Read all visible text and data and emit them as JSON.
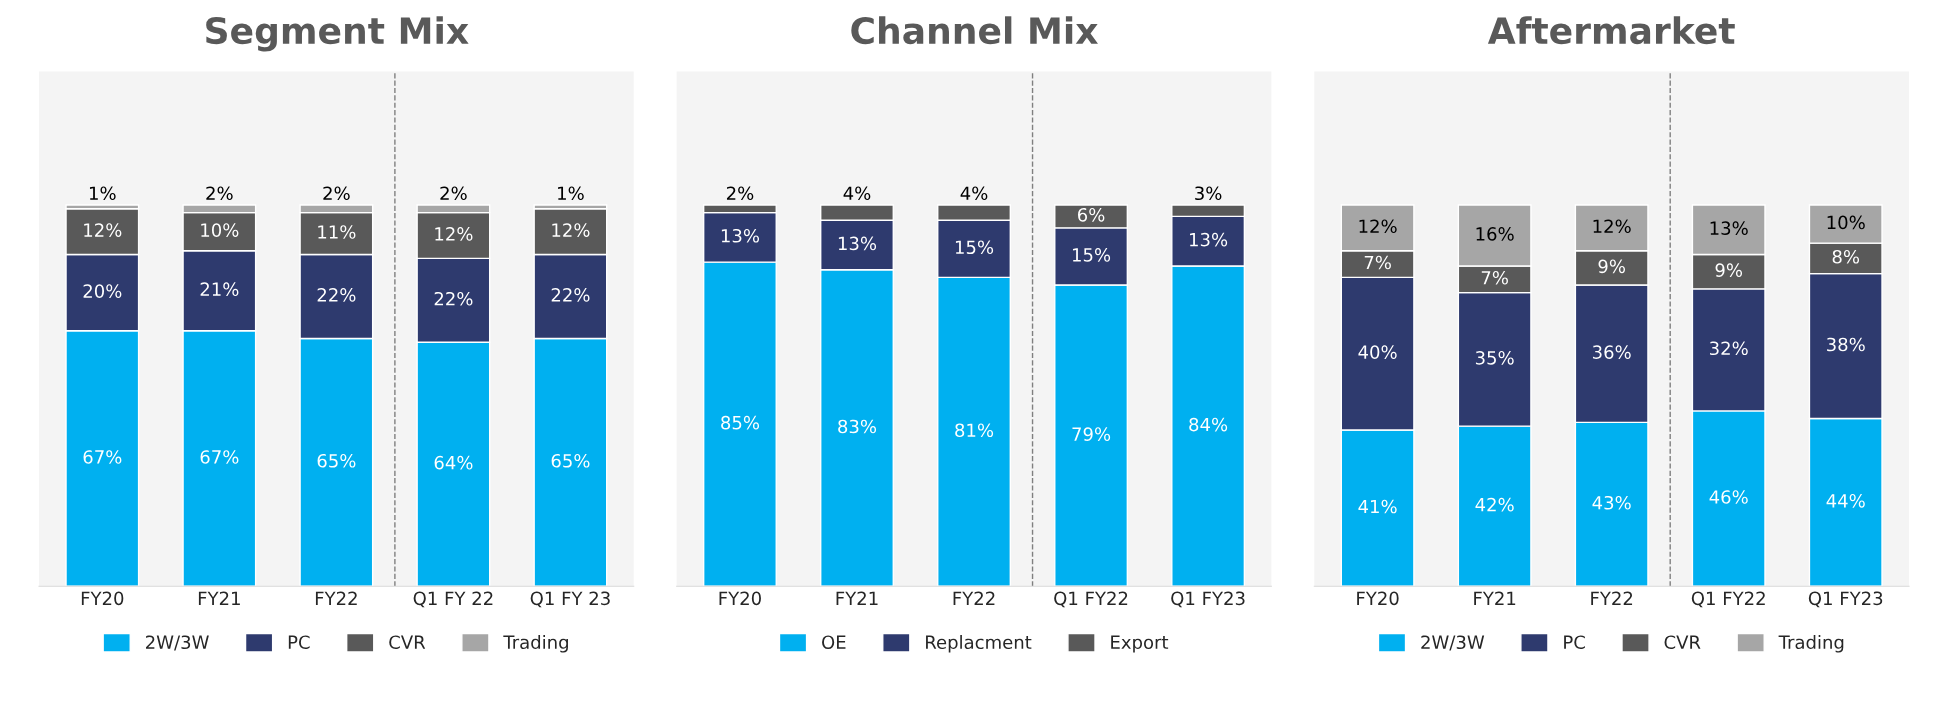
{
  "chart_data": [
    {
      "type": "bar",
      "title": "Segment Mix",
      "stacked": true,
      "legend": "bottom",
      "categories": [
        "FY20",
        "FY21",
        "FY22",
        "Q1 FY 22",
        "Q1 FY 23"
      ],
      "series": [
        {
          "name": "2W/3W",
          "color": "#00b0f0",
          "values": [
            67,
            67,
            65,
            64,
            65
          ],
          "value_labels": [
            "67%",
            "67%",
            "65%",
            "64%",
            "65%"
          ]
        },
        {
          "name": "PC",
          "color": "#2e3a6e",
          "values": [
            20,
            21,
            22,
            22,
            22
          ],
          "value_labels": [
            "20%",
            "21%",
            "22%",
            "22%",
            "22%"
          ]
        },
        {
          "name": "CVR",
          "color": "#595959",
          "values": [
            12,
            10,
            11,
            12,
            12
          ],
          "value_labels": [
            "12%",
            "10%",
            "11%",
            "12%",
            "12%"
          ]
        },
        {
          "name": "Trading",
          "color": "#a6a6a6",
          "values": [
            1,
            2,
            2,
            2,
            1
          ],
          "value_labels": [
            "1%",
            "2%",
            "2%",
            "2%",
            "1%"
          ]
        }
      ]
    },
    {
      "type": "bar",
      "title": "Channel Mix",
      "stacked": true,
      "legend": "bottom",
      "categories": [
        "FY20",
        "FY21",
        "FY22",
        "Q1 FY22",
        "Q1 FY23"
      ],
      "series": [
        {
          "name": "OE",
          "color": "#00b0f0",
          "values": [
            85,
            83,
            81,
            79,
            84
          ],
          "value_labels": [
            "85%",
            "83%",
            "81%",
            "79%",
            "84%"
          ]
        },
        {
          "name": "Replacment",
          "color": "#2e3a6e",
          "values": [
            13,
            13,
            15,
            15,
            13
          ],
          "value_labels": [
            "13%",
            "13%",
            "15%",
            "15%",
            "13%"
          ]
        },
        {
          "name": "Export",
          "color": "#595959",
          "values": [
            2,
            4,
            4,
            6,
            3
          ],
          "value_labels": [
            "2%",
            "4%",
            "4%",
            "6%",
            "3%"
          ]
        }
      ]
    },
    {
      "type": "bar",
      "title": "Aftermarket",
      "stacked": true,
      "legend": "bottom",
      "categories": [
        "FY20",
        "FY21",
        "FY22",
        "Q1 FY22",
        "Q1 FY23"
      ],
      "series": [
        {
          "name": "2W/3W",
          "color": "#00b0f0",
          "values": [
            41,
            42,
            43,
            46,
            44
          ],
          "value_labels": [
            "41%",
            "42%",
            "43%",
            "46%",
            "44%"
          ]
        },
        {
          "name": "PC",
          "color": "#2e3a6e",
          "values": [
            40,
            35,
            36,
            32,
            38
          ],
          "value_labels": [
            "40%",
            "35%",
            "36%",
            "32%",
            "38%"
          ]
        },
        {
          "name": "CVR",
          "color": "#595959",
          "values": [
            7,
            7,
            9,
            9,
            8
          ],
          "value_labels": [
            "7%",
            "7%",
            "9%",
            "9%",
            "8%"
          ]
        },
        {
          "name": "Trading",
          "color": "#a6a6a6",
          "values": [
            12,
            16,
            12,
            13,
            10
          ],
          "value_labels": [
            "12%",
            "16%",
            "12%",
            "13%",
            "10%"
          ]
        }
      ]
    }
  ]
}
